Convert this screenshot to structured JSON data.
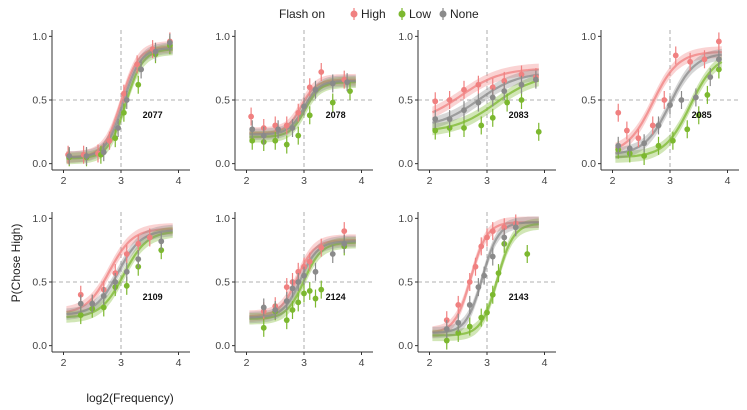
{
  "legend": {
    "title": "Flash on",
    "entries": [
      {
        "label": "High",
        "color": "#f08080"
      },
      {
        "label": "Low",
        "color": "#7cb82f"
      },
      {
        "label": "None",
        "color": "#8a8a8a"
      }
    ]
  },
  "colors": {
    "High": "#f08080",
    "Low": "#7cb82f",
    "None": "#8a8a8a",
    "threshold_line": "#999999",
    "axis": "#333333"
  },
  "chart_data": {
    "type": "scatter",
    "title": "",
    "xlabel": "log2(Frequency)",
    "ylabel": "P(Chose High)",
    "xlim": [
      1.8,
      4.2
    ],
    "ylim": [
      -0.05,
      1.05
    ],
    "x_ticks": [
      2,
      3,
      4
    ],
    "y_ticks": [
      0.0,
      0.5,
      1.0
    ],
    "y_tick_labels": [
      "0.0",
      "0.5",
      "1.0"
    ],
    "reference_lines": {
      "x": 3,
      "y": 0.5
    },
    "panels": [
      {
        "id": "2077",
        "curves": {
          "High": {
            "mu": 3.0,
            "s": 0.15,
            "lo": 0.05,
            "hi": 0.92
          },
          "Low": {
            "mu": 3.08,
            "s": 0.15,
            "lo": 0.04,
            "hi": 0.9
          },
          "None": {
            "mu": 3.04,
            "s": 0.15,
            "lo": 0.05,
            "hi": 0.91
          }
        },
        "points": {
          "High": [
            [
              2.08,
              0.07
            ],
            [
              2.35,
              0.07
            ],
            [
              2.6,
              0.08
            ],
            [
              2.8,
              0.18
            ],
            [
              3.05,
              0.55
            ],
            [
              3.28,
              0.78
            ],
            [
              3.55,
              0.9
            ],
            [
              3.85,
              0.96
            ]
          ],
          "Low": [
            [
              2.1,
              0.05
            ],
            [
              2.4,
              0.05
            ],
            [
              2.65,
              0.07
            ],
            [
              2.9,
              0.2
            ],
            [
              3.05,
              0.4
            ],
            [
              3.3,
              0.62
            ],
            [
              3.6,
              0.86
            ],
            [
              3.85,
              0.93
            ]
          ],
          "None": [
            [
              2.1,
              0.06
            ],
            [
              2.4,
              0.06
            ],
            [
              2.7,
              0.09
            ],
            [
              2.95,
              0.28
            ],
            [
              3.1,
              0.5
            ],
            [
              3.35,
              0.74
            ],
            [
              3.6,
              0.88
            ],
            [
              3.85,
              0.95
            ]
          ]
        }
      },
      {
        "id": "2078",
        "curves": {
          "High": {
            "mu": 2.95,
            "s": 0.13,
            "lo": 0.24,
            "hi": 0.66
          },
          "Low": {
            "mu": 3.02,
            "s": 0.13,
            "lo": 0.21,
            "hi": 0.64
          },
          "None": {
            "mu": 3.0,
            "s": 0.13,
            "lo": 0.23,
            "hi": 0.65
          }
        },
        "points": {
          "High": [
            [
              2.08,
              0.37
            ],
            [
              2.3,
              0.28
            ],
            [
              2.5,
              0.3
            ],
            [
              2.7,
              0.3
            ],
            [
              2.9,
              0.4
            ],
            [
              3.1,
              0.6
            ],
            [
              3.3,
              0.72
            ],
            [
              3.7,
              0.66
            ]
          ],
          "Low": [
            [
              2.1,
              0.18
            ],
            [
              2.3,
              0.17
            ],
            [
              2.5,
              0.18
            ],
            [
              2.7,
              0.15
            ],
            [
              2.9,
              0.22
            ],
            [
              3.1,
              0.38
            ],
            [
              3.5,
              0.48
            ],
            [
              3.8,
              0.57
            ]
          ],
          "None": [
            [
              2.1,
              0.27
            ],
            [
              2.3,
              0.22
            ],
            [
              2.55,
              0.27
            ],
            [
              2.8,
              0.28
            ],
            [
              3.0,
              0.45
            ],
            [
              3.2,
              0.58
            ],
            [
              3.5,
              0.63
            ],
            [
              3.75,
              0.64
            ]
          ]
        }
      },
      {
        "id": "2083",
        "curves": {
          "High": {
            "mu": 2.55,
            "s": 0.35,
            "lo": 0.32,
            "hi": 0.75
          },
          "Low": {
            "mu": 3.15,
            "s": 0.35,
            "lo": 0.25,
            "hi": 0.7
          },
          "None": {
            "mu": 2.85,
            "s": 0.35,
            "lo": 0.28,
            "hi": 0.72
          }
        },
        "points": {
          "High": [
            [
              2.1,
              0.49
            ],
            [
              2.35,
              0.5
            ],
            [
              2.6,
              0.58
            ],
            [
              2.85,
              0.62
            ],
            [
              3.1,
              0.6
            ],
            [
              3.3,
              0.65
            ],
            [
              3.6,
              0.7
            ],
            [
              3.85,
              0.68
            ]
          ],
          "Low": [
            [
              2.1,
              0.26
            ],
            [
              2.35,
              0.28
            ],
            [
              2.6,
              0.28
            ],
            [
              2.9,
              0.3
            ],
            [
              3.1,
              0.36
            ],
            [
              3.35,
              0.48
            ],
            [
              3.6,
              0.5
            ],
            [
              3.9,
              0.25
            ]
          ],
          "None": [
            [
              2.1,
              0.35
            ],
            [
              2.35,
              0.35
            ],
            [
              2.6,
              0.42
            ],
            [
              2.85,
              0.48
            ],
            [
              3.1,
              0.52
            ],
            [
              3.3,
              0.57
            ],
            [
              3.6,
              0.62
            ],
            [
              3.85,
              0.66
            ]
          ]
        }
      },
      {
        "id": "2085",
        "curves": {
          "High": {
            "mu": 2.7,
            "s": 0.22,
            "lo": 0.08,
            "hi": 0.88
          },
          "Low": {
            "mu": 3.35,
            "s": 0.22,
            "lo": 0.05,
            "hi": 0.86
          },
          "None": {
            "mu": 3.0,
            "s": 0.22,
            "lo": 0.07,
            "hi": 0.87
          }
        },
        "points": {
          "High": [
            [
              2.1,
              0.4
            ],
            [
              2.25,
              0.26
            ],
            [
              2.45,
              0.2
            ],
            [
              2.7,
              0.3
            ],
            [
              2.9,
              0.5
            ],
            [
              3.1,
              0.85
            ],
            [
              3.35,
              0.8
            ],
            [
              3.6,
              0.82
            ],
            [
              3.85,
              0.96
            ]
          ],
          "Low": [
            [
              2.1,
              0.11
            ],
            [
              2.3,
              0.08
            ],
            [
              2.55,
              0.06
            ],
            [
              2.8,
              0.14
            ],
            [
              3.05,
              0.18
            ],
            [
              3.3,
              0.27
            ],
            [
              3.5,
              0.38
            ],
            [
              3.65,
              0.54
            ],
            [
              3.85,
              0.74
            ]
          ],
          "None": [
            [
              2.1,
              0.14
            ],
            [
              2.3,
              0.12
            ],
            [
              2.55,
              0.16
            ],
            [
              2.8,
              0.3
            ],
            [
              3.0,
              0.46
            ],
            [
              3.2,
              0.5
            ],
            [
              3.45,
              0.52
            ],
            [
              3.7,
              0.68
            ],
            [
              3.85,
              0.82
            ]
          ]
        }
      },
      {
        "id": "2109",
        "curves": {
          "High": {
            "mu": 2.8,
            "s": 0.2,
            "lo": 0.25,
            "hi": 0.92
          },
          "Low": {
            "mu": 3.05,
            "s": 0.2,
            "lo": 0.22,
            "hi": 0.9
          },
          "None": {
            "mu": 2.95,
            "s": 0.2,
            "lo": 0.24,
            "hi": 0.91
          }
        },
        "points": {
          "High": [
            [
              2.3,
              0.4
            ],
            [
              2.5,
              0.33
            ],
            [
              2.7,
              0.44
            ],
            [
              2.9,
              0.57
            ],
            [
              3.1,
              0.72
            ],
            [
              3.3,
              0.8
            ],
            [
              3.5,
              0.85
            ]
          ],
          "Low": [
            [
              2.3,
              0.24
            ],
            [
              2.5,
              0.29
            ],
            [
              2.7,
              0.3
            ],
            [
              2.9,
              0.46
            ],
            [
              3.1,
              0.47
            ],
            [
              3.3,
              0.62
            ],
            [
              3.7,
              0.75
            ]
          ],
          "None": [
            [
              2.3,
              0.33
            ],
            [
              2.5,
              0.33
            ],
            [
              2.7,
              0.39
            ],
            [
              2.9,
              0.5
            ],
            [
              3.1,
              0.58
            ],
            [
              3.3,
              0.68
            ],
            [
              3.7,
              0.82
            ]
          ]
        }
      },
      {
        "id": "2124",
        "curves": {
          "High": {
            "mu": 2.88,
            "s": 0.15,
            "lo": 0.23,
            "hi": 0.83
          },
          "Low": {
            "mu": 3.0,
            "s": 0.15,
            "lo": 0.21,
            "hi": 0.81
          },
          "None": {
            "mu": 2.94,
            "s": 0.15,
            "lo": 0.22,
            "hi": 0.82
          }
        },
        "points": {
          "High": [
            [
              2.3,
              0.27
            ],
            [
              2.5,
              0.31
            ],
            [
              2.7,
              0.46
            ],
            [
              2.8,
              0.5
            ],
            [
              2.9,
              0.58
            ],
            [
              3.0,
              0.62
            ],
            [
              3.1,
              0.66
            ],
            [
              3.3,
              0.77
            ],
            [
              3.7,
              0.9
            ]
          ],
          "Low": [
            [
              2.3,
              0.14
            ],
            [
              2.5,
              0.27
            ],
            [
              2.7,
              0.2
            ],
            [
              2.8,
              0.28
            ],
            [
              2.9,
              0.34
            ],
            [
              3.0,
              0.41
            ],
            [
              3.1,
              0.43
            ],
            [
              3.2,
              0.37
            ],
            [
              3.3,
              0.44
            ],
            [
              3.7,
              0.78
            ]
          ],
          "None": [
            [
              2.3,
              0.3
            ],
            [
              2.5,
              0.28
            ],
            [
              2.7,
              0.35
            ],
            [
              2.8,
              0.45
            ],
            [
              2.9,
              0.5
            ],
            [
              3.0,
              0.55
            ],
            [
              3.2,
              0.58
            ],
            [
              3.5,
              0.72
            ],
            [
              3.7,
              0.8
            ]
          ]
        }
      },
      {
        "id": "2143",
        "curves": {
          "High": {
            "mu": 2.72,
            "s": 0.14,
            "lo": 0.1,
            "hi": 0.97
          },
          "Low": {
            "mu": 3.18,
            "s": 0.14,
            "lo": 0.08,
            "hi": 0.96
          },
          "None": {
            "mu": 2.92,
            "s": 0.14,
            "lo": 0.1,
            "hi": 0.97
          }
        },
        "points": {
          "High": [
            [
              2.3,
              0.2
            ],
            [
              2.5,
              0.32
            ],
            [
              2.7,
              0.5
            ],
            [
              2.8,
              0.62
            ],
            [
              2.9,
              0.78
            ],
            [
              3.0,
              0.85
            ],
            [
              3.1,
              0.9
            ],
            [
              3.3,
              0.93
            ],
            [
              3.5,
              0.96
            ]
          ],
          "Low": [
            [
              2.3,
              0.04
            ],
            [
              2.5,
              0.1
            ],
            [
              2.7,
              0.15
            ],
            [
              2.9,
              0.22
            ],
            [
              3.0,
              0.26
            ],
            [
              3.1,
              0.4
            ],
            [
              3.2,
              0.57
            ],
            [
              3.3,
              0.8
            ],
            [
              3.7,
              0.72
            ]
          ],
          "None": [
            [
              2.3,
              0.13
            ],
            [
              2.5,
              0.18
            ],
            [
              2.7,
              0.32
            ],
            [
              2.85,
              0.46
            ],
            [
              2.95,
              0.55
            ],
            [
              3.1,
              0.7
            ],
            [
              3.3,
              0.85
            ],
            [
              3.5,
              0.93
            ]
          ]
        }
      }
    ]
  }
}
